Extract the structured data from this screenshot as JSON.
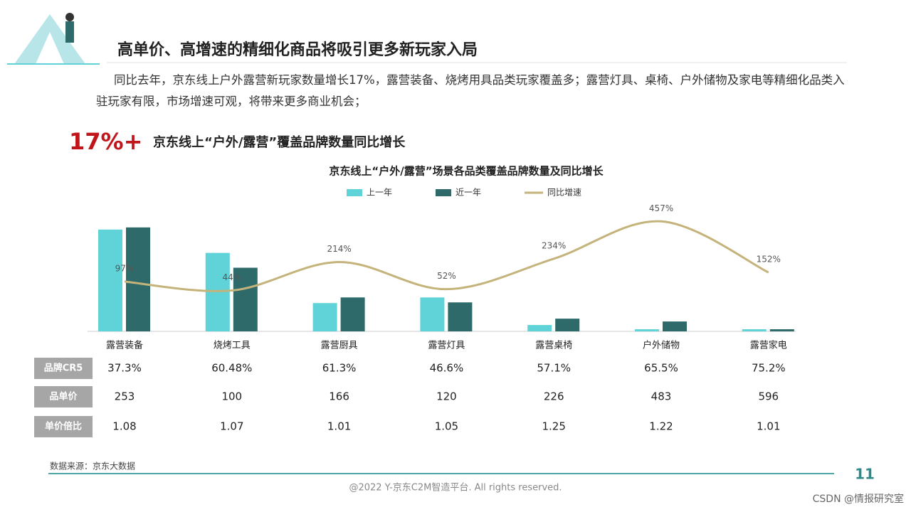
{
  "header": {
    "title": "高单价、高增速的精细化商品将吸引更多新玩家入局",
    "paragraph": "同比去年，京东线上户外露营新玩家数量增长17%，露营装备、烧烤用具品类玩家覆盖多；露营灯具、桌椅、户外储物及家电等精细化品类入驻玩家有限，市场增速可观，将带来更多商业机会；",
    "highlight": "17%+",
    "highlight_text": "京东线上“户外/露营”覆盖品牌数量同比增长"
  },
  "chart_data": {
    "type": "bar",
    "title": "京东线上“户外/露营”场景各品类覆盖品牌数量及同比增长",
    "categories": [
      "露营装备",
      "烧烤工具",
      "露营厨具",
      "露营灯具",
      "露营桌椅",
      "户外储物",
      "露营家电"
    ],
    "series": [
      {
        "name": "上一年",
        "color": "#5fd3d8",
        "values": [
          144,
          111,
          40,
          48,
          9,
          3,
          3
        ]
      },
      {
        "name": "近一年",
        "color": "#2e6a6a",
        "values": [
          147,
          90,
          48,
          41,
          18,
          14,
          3
        ]
      },
      {
        "name": "同比增速",
        "color": "#c4b37a",
        "type": "line",
        "axis": "y2",
        "values": [
          97,
          44,
          214,
          52,
          234,
          457,
          152
        ],
        "value_labels": [
          "97%",
          "44%",
          "214%",
          "52%",
          "234%",
          "457%",
          "152%"
        ]
      }
    ],
    "ylim": [
      0,
      180
    ],
    "y2lim": [
      -200,
      560
    ]
  },
  "table": {
    "row_labels": [
      "品牌CR5",
      "品单价",
      "单价倍比"
    ],
    "rows": [
      [
        "37.3%",
        "60.48%",
        "61.3%",
        "46.6%",
        "57.1%",
        "65.5%",
        "75.2%"
      ],
      [
        "253",
        "100",
        "166",
        "120",
        "226",
        "483",
        "596"
      ],
      [
        "1.08",
        "1.07",
        "1.01",
        "1.05",
        "1.25",
        "1.22",
        "1.01"
      ]
    ]
  },
  "footer": {
    "source": "数据来源：京东大数据",
    "copyright": "@2022 Y-京东C2M智造平台. All rights reserved.",
    "page": "11",
    "watermark": "CSDN @情报研究室"
  }
}
